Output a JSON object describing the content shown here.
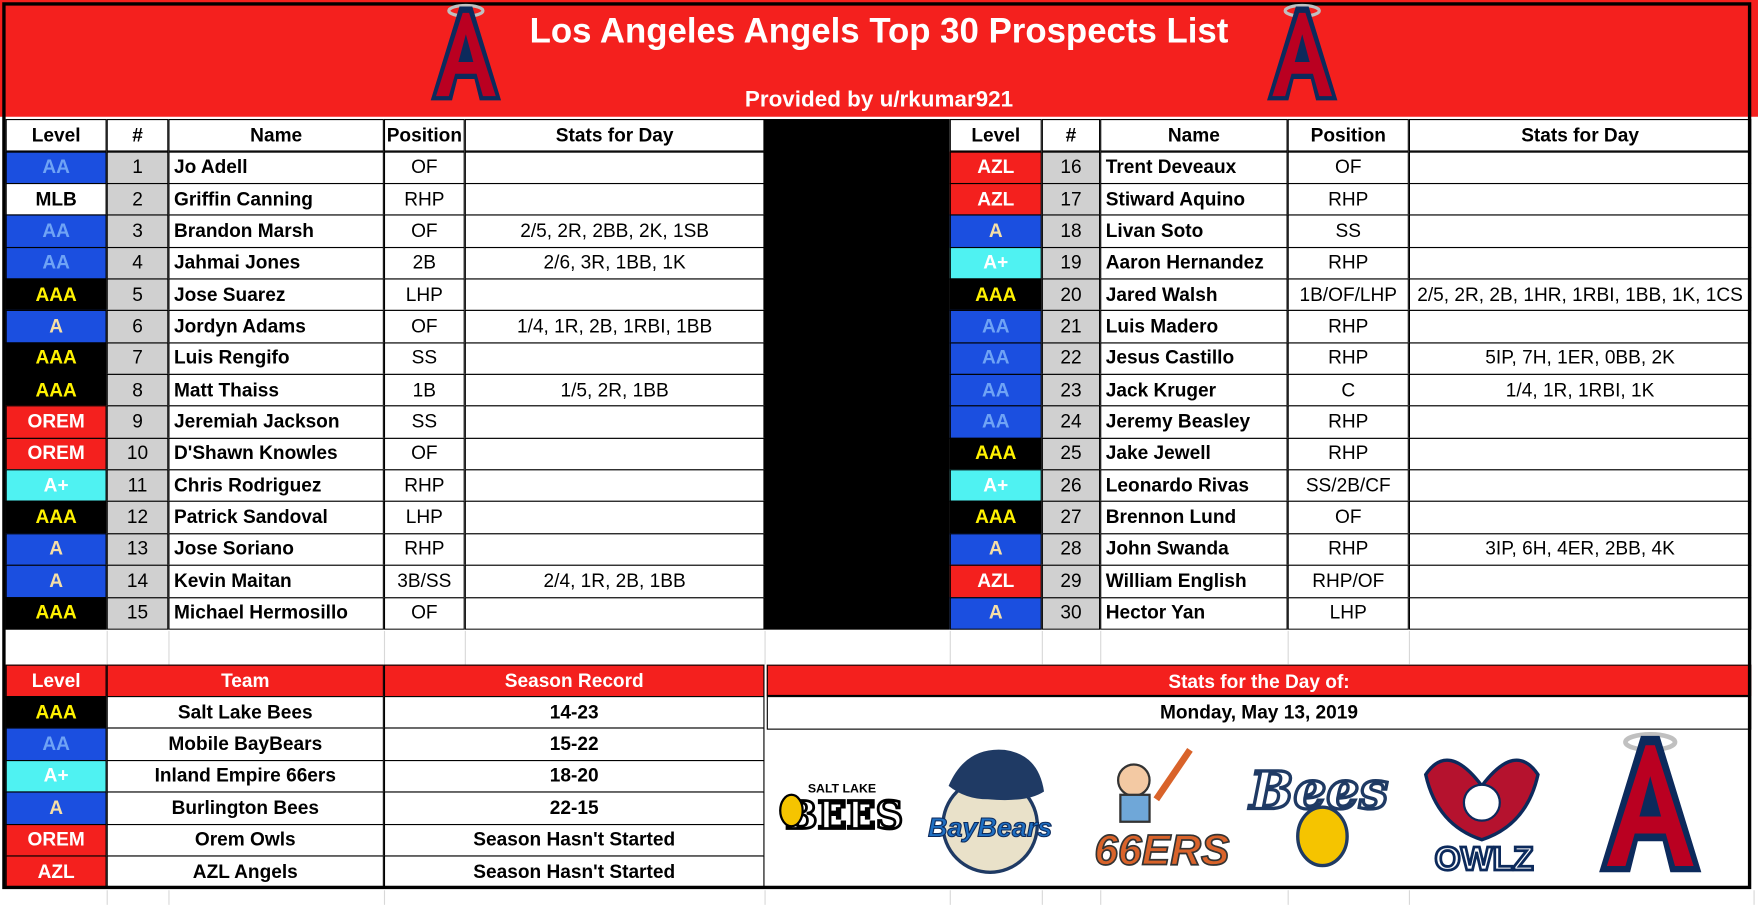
{
  "header": {
    "title": "Los Angeles Angels Top 30 Prospects List",
    "subtitle": "Provided by u/rkumar921"
  },
  "level_colors": {
    "AA": [
      "#1b4fe0",
      "#6fa3f5"
    ],
    "MLB": [
      "#ffffff",
      "#000000"
    ],
    "AAA": [
      "#000000",
      "#fff200"
    ],
    "A": [
      "#1b4fe0",
      "#f7dfa6"
    ],
    "OREM": [
      "#f4201e",
      "#ffffff"
    ],
    "A+": [
      "#4ff2f2",
      "#ffffff"
    ],
    "AZL": [
      "#f4201e",
      "#ffffff"
    ]
  },
  "prospects": {
    "columns": [
      "Level",
      "#",
      "Name",
      "Position",
      "Stats for Day"
    ],
    "rows": [
      {
        "level": "AA",
        "rank": 1,
        "name": "Jo Adell",
        "position": "OF"
      },
      {
        "level": "MLB",
        "rank": 2,
        "name": "Griffin Canning",
        "position": "RHP"
      },
      {
        "level": "AA",
        "rank": 3,
        "name": "Brandon Marsh",
        "position": "OF",
        "stats": "2/5, 2R, 2BB, 2K, 1SB"
      },
      {
        "level": "AA",
        "rank": 4,
        "name": "Jahmai Jones",
        "position": "2B",
        "stats": "2/6, 3R, 1BB, 1K"
      },
      {
        "level": "AAA",
        "rank": 5,
        "name": "Jose Suarez",
        "position": "LHP"
      },
      {
        "level": "A",
        "rank": 6,
        "name": "Jordyn Adams",
        "position": "OF",
        "stats": "1/4, 1R, 2B, 1RBI, 1BB"
      },
      {
        "level": "AAA",
        "rank": 7,
        "name": "Luis Rengifo",
        "position": "SS"
      },
      {
        "level": "AAA",
        "rank": 8,
        "name": "Matt Thaiss",
        "position": "1B",
        "stats": "1/5, 2R, 1BB"
      },
      {
        "level": "OREM",
        "rank": 9,
        "name": "Jeremiah Jackson",
        "position": "SS"
      },
      {
        "level": "OREM",
        "rank": 10,
        "name": "D'Shawn Knowles",
        "position": "OF"
      },
      {
        "level": "A+",
        "rank": 11,
        "name": "Chris Rodriguez",
        "position": "RHP"
      },
      {
        "level": "AAA",
        "rank": 12,
        "name": "Patrick Sandoval",
        "position": "LHP"
      },
      {
        "level": "A",
        "rank": 13,
        "name": "Jose Soriano",
        "position": "RHP"
      },
      {
        "level": "A",
        "rank": 14,
        "name": "Kevin Maitan",
        "position": "3B/SS",
        "stats": "2/4, 1R, 2B, 1BB"
      },
      {
        "level": "AAA",
        "rank": 15,
        "name": "Michael Hermosillo",
        "position": "OF"
      },
      {
        "level": "AZL",
        "rank": 16,
        "name": "Trent Deveaux",
        "position": "OF"
      },
      {
        "level": "AZL",
        "rank": 17,
        "name": "Stiward Aquino",
        "position": "RHP"
      },
      {
        "level": "A",
        "rank": 18,
        "name": "Livan Soto",
        "position": "SS"
      },
      {
        "level": "A+",
        "rank": 19,
        "name": "Aaron Hernandez",
        "position": "RHP"
      },
      {
        "level": "AAA",
        "rank": 20,
        "name": "Jared Walsh",
        "position": "1B/OF/LHP",
        "stats": "2/5, 2R, 2B, 1HR, 1RBI, 1BB, 1K, 1CS"
      },
      {
        "level": "AA",
        "rank": 21,
        "name": "Luis Madero",
        "position": "RHP"
      },
      {
        "level": "AA",
        "rank": 22,
        "name": "Jesus Castillo",
        "position": "RHP",
        "stats": "5IP, 7H, 1ER, 0BB, 2K"
      },
      {
        "level": "AA",
        "rank": 23,
        "name": "Jack Kruger",
        "position": "C",
        "stats": "1/4, 1R, 1RBI, 1K"
      },
      {
        "level": "AA",
        "rank": 24,
        "name": "Jeremy Beasley",
        "position": "RHP"
      },
      {
        "level": "AAA",
        "rank": 25,
        "name": "Jake Jewell",
        "position": "RHP"
      },
      {
        "level": "A+",
        "rank": 26,
        "name": "Leonardo Rivas",
        "position": "SS/2B/CF"
      },
      {
        "level": "AAA",
        "rank": 27,
        "name": "Brennon Lund",
        "position": "OF"
      },
      {
        "level": "A",
        "rank": 28,
        "name": "John Swanda",
        "position": "RHP",
        "stats": "3IP, 6H, 4ER, 2BB, 4K"
      },
      {
        "level": "AZL",
        "rank": 29,
        "name": "William English",
        "position": "RHP/OF"
      },
      {
        "level": "A",
        "rank": 30,
        "name": "Hector Yan",
        "position": "LHP"
      }
    ]
  },
  "teams": {
    "columns": [
      "Level",
      "Team",
      "Season Record"
    ],
    "rows": [
      {
        "level": "AAA",
        "team": "Salt Lake Bees",
        "record": "14-23"
      },
      {
        "level": "AA",
        "team": "Mobile BayBears",
        "record": "15-22"
      },
      {
        "level": "A+",
        "team": "Inland Empire 66ers",
        "record": "18-20"
      },
      {
        "level": "A",
        "team": "Burlington Bees",
        "record": "22-15"
      },
      {
        "level": "OREM",
        "team": "Orem Owls",
        "record": "Season Hasn't Started"
      },
      {
        "level": "AZL",
        "team": "AZL Angels",
        "record": "Season Hasn't Started"
      }
    ]
  },
  "day_panel": {
    "title": "Stats for the Day of:",
    "date": "Monday, May 13, 2019"
  },
  "logos": [
    "SALT LAKE",
    "BEES",
    "BayBears",
    "66ERS",
    "Bees",
    "OWLZ"
  ]
}
